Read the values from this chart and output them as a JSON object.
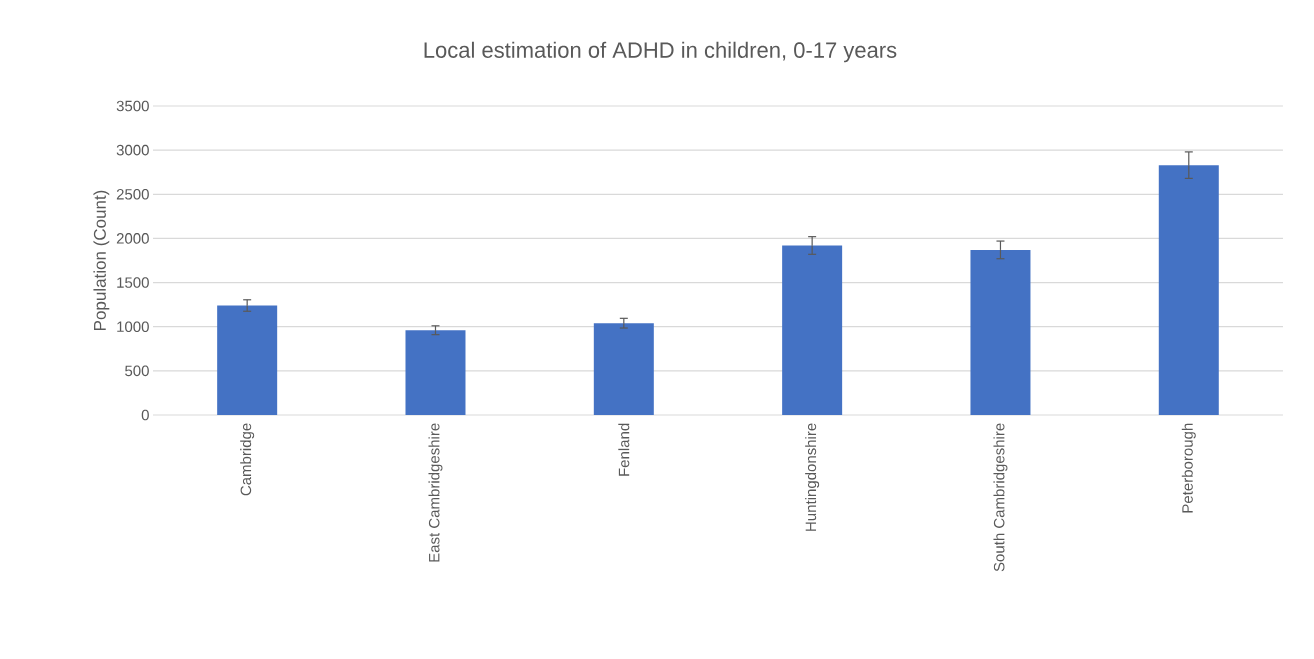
{
  "chart_data": {
    "type": "bar",
    "title": "Local estimation of ADHD in children, 0-17 years",
    "ylabel": "Population (Count)",
    "categories": [
      "Cambridge",
      "East Cambridgeshire",
      "Fenland",
      "Huntingdonshire",
      "South Cambridgeshire",
      "Peterborough"
    ],
    "values": [
      1240,
      960,
      1040,
      1920,
      1870,
      2830
    ],
    "errors": [
      65,
      50,
      55,
      100,
      100,
      150
    ],
    "color": "#4472c4",
    "ylim": [
      0,
      3500
    ],
    "yticks": [
      0,
      500,
      1000,
      1500,
      2000,
      2500,
      3000,
      3500
    ],
    "grid": "y"
  }
}
